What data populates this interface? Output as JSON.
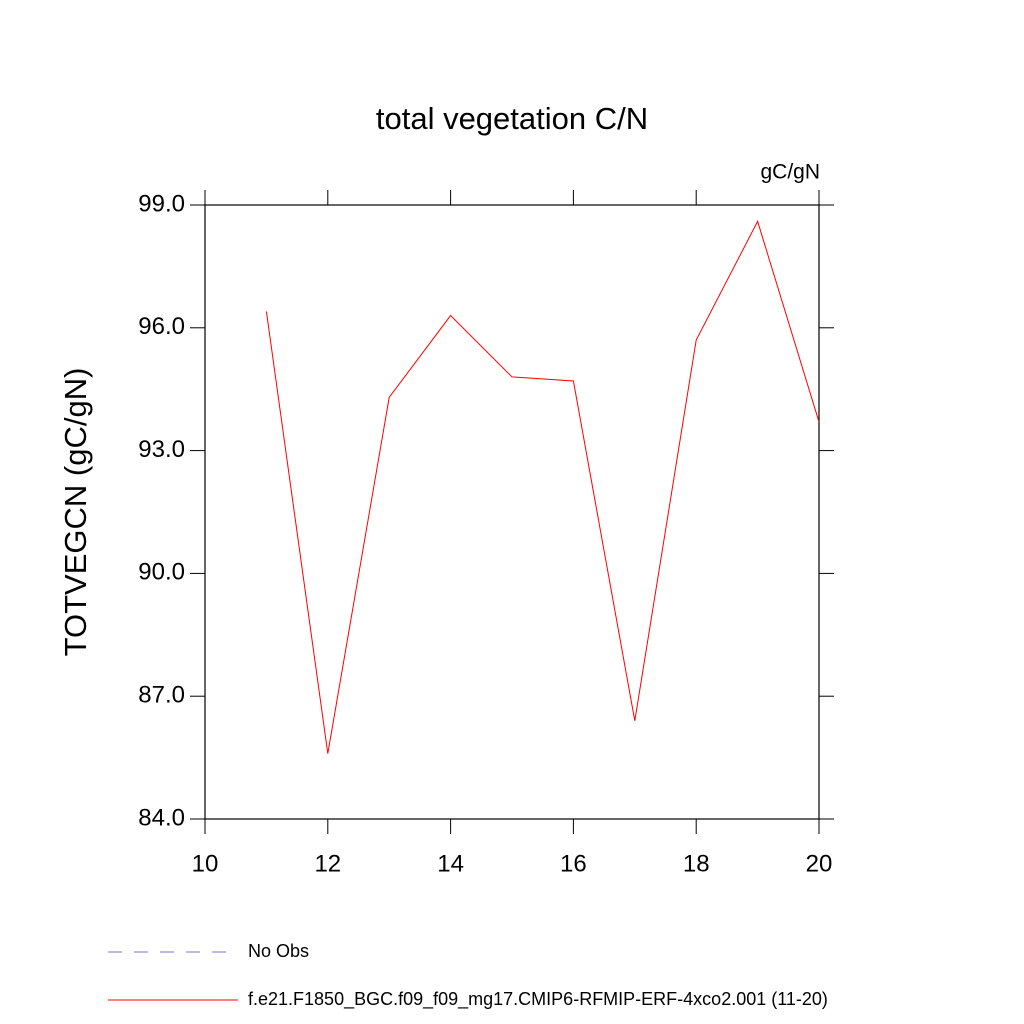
{
  "chart_data": {
    "type": "line",
    "title": "total vegetation C/N",
    "units": "gC/gN",
    "y_label": "TOTVEGCN  (gC/gN)",
    "x": [
      11,
      12,
      13,
      14,
      15,
      16,
      17,
      18,
      19,
      20
    ],
    "series": [
      {
        "name": "No Obs",
        "color": "#7b72c8",
        "dashed": true,
        "values": [
          null,
          null,
          null,
          null,
          null,
          null,
          null,
          null,
          null,
          null
        ]
      },
      {
        "name": "f.e21.F1850_BGC.f09_f09_mg17.CMIP6-RFMIP-ERF-4xco2.001 (11-20)",
        "color": "#ff0000",
        "dashed": false,
        "values": [
          96.4,
          85.6,
          94.3,
          96.3,
          94.8,
          94.7,
          86.4,
          95.7,
          98.6,
          93.7
        ]
      }
    ],
    "xlim": [
      10,
      20
    ],
    "xticks": [
      10,
      12,
      14,
      16,
      18,
      20
    ],
    "ylim": [
      84,
      99
    ],
    "yticks": [
      {
        "value": 84,
        "label": "84.0"
      },
      {
        "value": 87,
        "label": "87.0"
      },
      {
        "value": 90,
        "label": "90.0"
      },
      {
        "value": 93,
        "label": "93.0"
      },
      {
        "value": 96,
        "label": "96.0"
      },
      {
        "value": 99,
        "label": "99.0"
      }
    ]
  }
}
